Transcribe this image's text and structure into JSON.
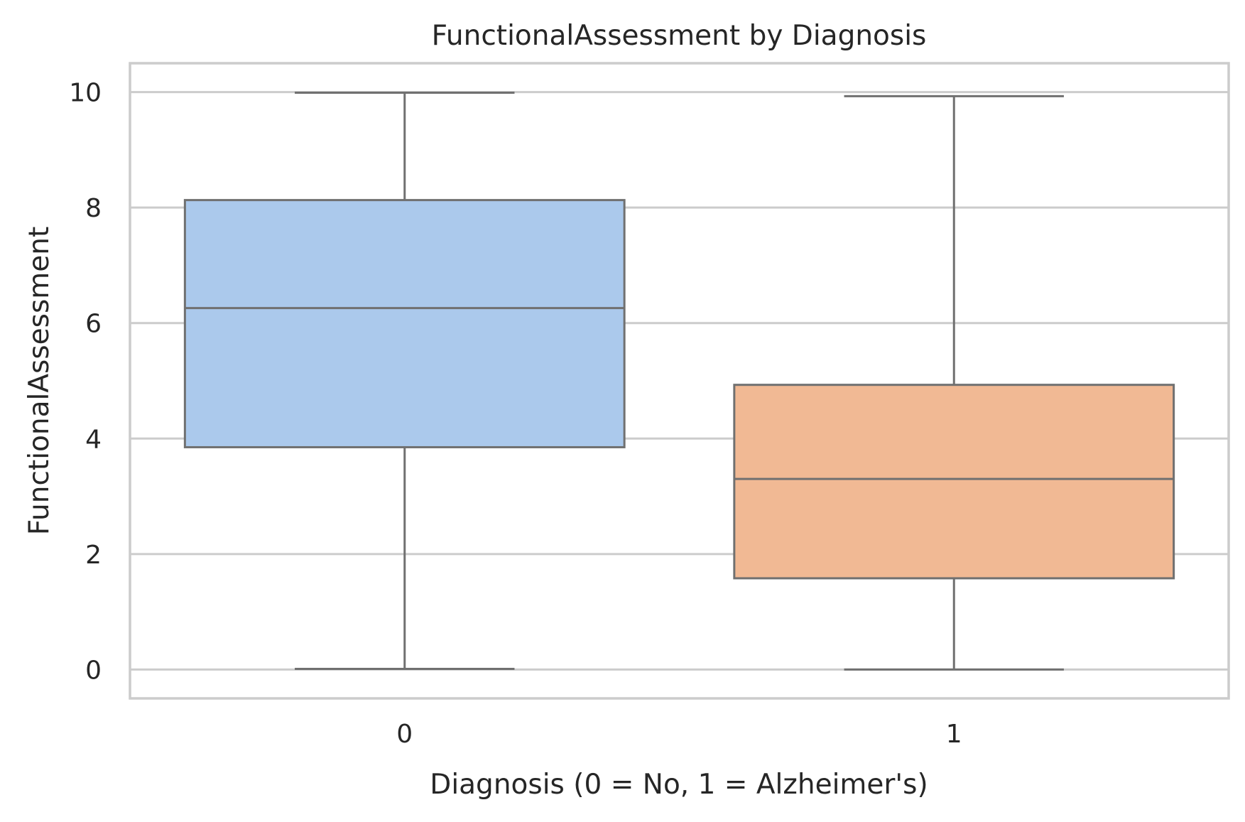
{
  "chart_data": {
    "type": "box",
    "title": "FunctionalAssessment by Diagnosis",
    "xlabel": "Diagnosis (0 = No, 1 = Alzheimer's)",
    "ylabel": "FunctionalAssessment",
    "categories": [
      "0",
      "1"
    ],
    "ylim": [
      -0.5,
      10.5
    ],
    "yticks": [
      0,
      2,
      4,
      6,
      8,
      10
    ],
    "grid": true,
    "boxes": [
      {
        "category": "0",
        "whisker_low": 0.01,
        "q1": 3.85,
        "median": 6.26,
        "q3": 8.13,
        "whisker_high": 9.99,
        "color": "#abc9ec"
      },
      {
        "category": "1",
        "whisker_low": 0.0,
        "q1": 1.58,
        "median": 3.3,
        "q3": 4.93,
        "whisker_high": 9.93,
        "color": "#f1b994"
      }
    ],
    "colors": {
      "box_edge": "#707070",
      "grid": "#cccccc",
      "frame": "#cccccc",
      "text": "#262626"
    }
  }
}
